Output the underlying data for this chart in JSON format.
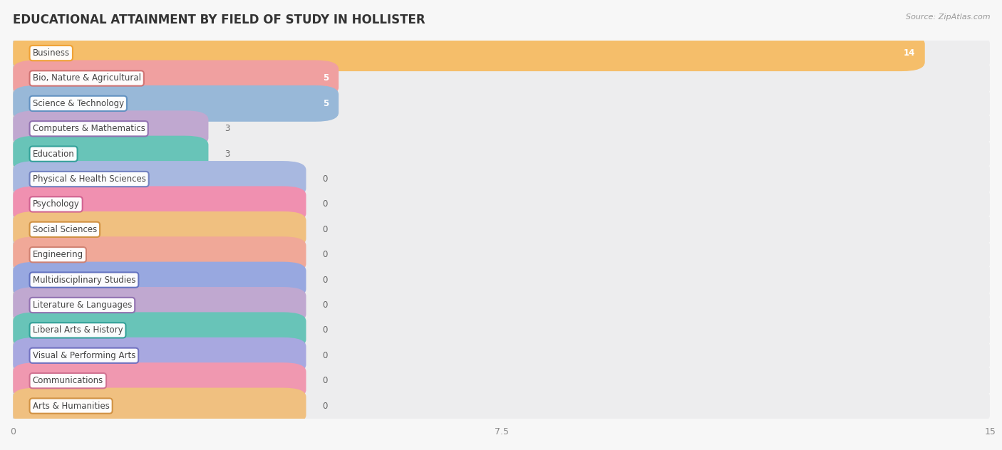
{
  "title": "EDUCATIONAL ATTAINMENT BY FIELD OF STUDY IN HOLLISTER",
  "source": "Source: ZipAtlas.com",
  "categories": [
    "Business",
    "Bio, Nature & Agricultural",
    "Science & Technology",
    "Computers & Mathematics",
    "Education",
    "Physical & Health Sciences",
    "Psychology",
    "Social Sciences",
    "Engineering",
    "Multidisciplinary Studies",
    "Literature & Languages",
    "Liberal Arts & History",
    "Visual & Performing Arts",
    "Communications",
    "Arts & Humanities"
  ],
  "values": [
    14,
    5,
    5,
    3,
    3,
    0,
    0,
    0,
    0,
    0,
    0,
    0,
    0,
    0,
    0
  ],
  "bar_colors": [
    "#F5BE6A",
    "#F0A0A0",
    "#98B8D8",
    "#C0A8D0",
    "#68C4B8",
    "#A8B8E0",
    "#F090B0",
    "#F0C080",
    "#F0A898",
    "#98A8E0",
    "#C0A8D0",
    "#68C4B8",
    "#A8A8E0",
    "#F098B0",
    "#F0C080"
  ],
  "label_border_colors": [
    "#F0A030",
    "#D07070",
    "#6090C0",
    "#9070B0",
    "#30A098",
    "#7080C0",
    "#D06090",
    "#D09040",
    "#D08070",
    "#6070C0",
    "#9070B0",
    "#30A098",
    "#7070C0",
    "#D07090",
    "#D09040"
  ],
  "bg_bar_color": "#EDEDEE",
  "row_colors": [
    "#FAFAFA",
    "#F2F2F2"
  ],
  "xlim": [
    0,
    15
  ],
  "xticks": [
    0,
    7.5,
    15
  ],
  "zero_bar_width": 4.5,
  "title_fontsize": 12,
  "bar_height": 0.72,
  "figsize": [
    14.06,
    6.32
  ],
  "value_label_fontsize": 8.5,
  "cat_label_fontsize": 8.5
}
